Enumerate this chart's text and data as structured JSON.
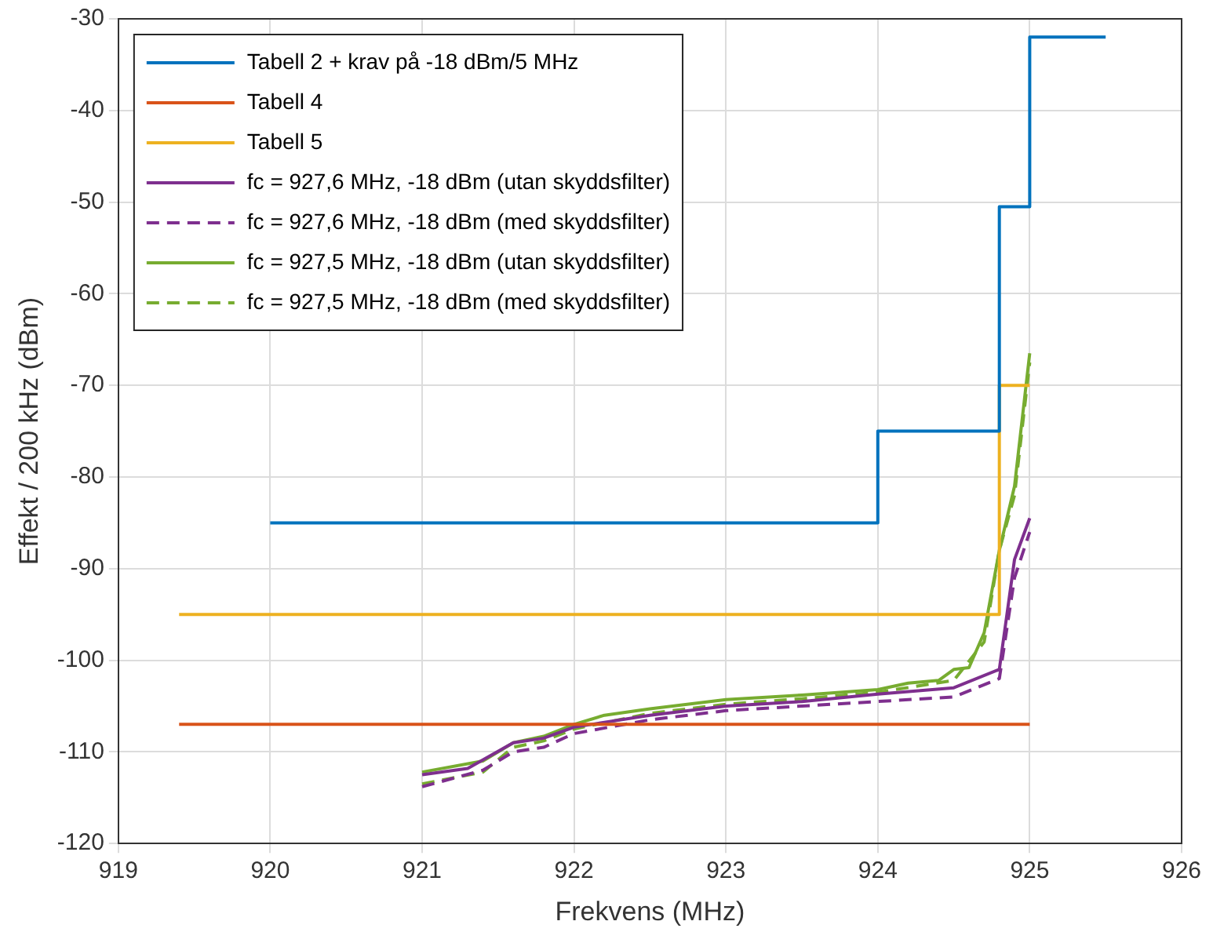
{
  "chart_data": {
    "type": "line",
    "xlabel": "Frekvens (MHz)",
    "ylabel": "Effekt / 200 kHz (dBm)",
    "xlim": [
      919,
      926
    ],
    "xticks": [
      919,
      920,
      921,
      922,
      923,
      924,
      925,
      926
    ],
    "ylim": [
      -120,
      -30
    ],
    "yticks": [
      -120,
      -110,
      -100,
      -90,
      -80,
      -70,
      -60,
      -50,
      -40,
      -30
    ],
    "grid": true,
    "legend": "top left",
    "marker": "none",
    "series": [
      {
        "name": "Tabell 2 + krav på -18 dBm/5 MHz",
        "type": "step",
        "color": "#0072bd",
        "x": [
          920,
          924,
          924.8,
          925,
          925.5
        ],
        "values": [
          -85,
          -75,
          -50.5,
          -32,
          -32
        ]
      },
      {
        "name": "Tabell 4",
        "type": "step",
        "color": "#d95319",
        "x": [
          919.4,
          925
        ],
        "values": [
          -107,
          -107
        ]
      },
      {
        "name": "Tabell 5",
        "type": "step",
        "color": "#edb120",
        "x": [
          919.4,
          924.8,
          925
        ],
        "values": [
          -95,
          -70,
          -70
        ]
      },
      {
        "name": "fc = 927,6 MHz, -18 dBm (utan skyddsfilter)",
        "color": "#7e2f8e",
        "line_style": "solid",
        "x": [
          921,
          921.3,
          921.6,
          921.8,
          922,
          922.5,
          923,
          923.5,
          924,
          924.5,
          924.8,
          924.9,
          925
        ],
        "values": [
          -112.5,
          -111.8,
          -109,
          -108.5,
          -107.3,
          -106,
          -105,
          -104.5,
          -103.7,
          -103,
          -101,
          -89,
          -84.5
        ]
      },
      {
        "name": "fc = 927,6 MHz, -18 dBm (med skyddsfilter)",
        "color": "#7e2f8e",
        "line_style": "dashed",
        "x": [
          921,
          921.4,
          921.6,
          921.8,
          922,
          922.5,
          923,
          923.5,
          924,
          924.5,
          924.8,
          924.9,
          925
        ],
        "values": [
          -113.8,
          -112,
          -110,
          -109.5,
          -108,
          -106.5,
          -105.5,
          -105,
          -104.5,
          -104,
          -102,
          -91,
          -86
        ]
      },
      {
        "name": "fc = 927,5 MHz, -18 dBm (utan skyddsfilter)",
        "color": "#77ac30",
        "line_style": "solid",
        "x": [
          921,
          921.4,
          921.6,
          921.8,
          922,
          922.2,
          922.5,
          923,
          923.5,
          924,
          924.2,
          924.4,
          924.5,
          924.6,
          924.7,
          924.8,
          924.9,
          925
        ],
        "values": [
          -112.2,
          -111,
          -109,
          -108.3,
          -107,
          -106,
          -105.3,
          -104.3,
          -103.8,
          -103.2,
          -102.5,
          -102.2,
          -101,
          -100.8,
          -97,
          -88,
          -81,
          -66.5
        ]
      },
      {
        "name": "fc = 927,5 MHz, -18 dBm (med skyddsfilter)",
        "color": "#77ac30",
        "line_style": "dashed",
        "x": [
          921,
          921.4,
          921.6,
          921.8,
          922,
          922.5,
          923,
          923.5,
          924,
          924.5,
          924.7,
          924.8,
          924.9,
          925
        ],
        "values": [
          -113.5,
          -112.2,
          -109.5,
          -108.8,
          -107.5,
          -105.8,
          -104.8,
          -104.2,
          -103.5,
          -102.2,
          -98,
          -88,
          -82,
          -67.5
        ]
      }
    ]
  }
}
